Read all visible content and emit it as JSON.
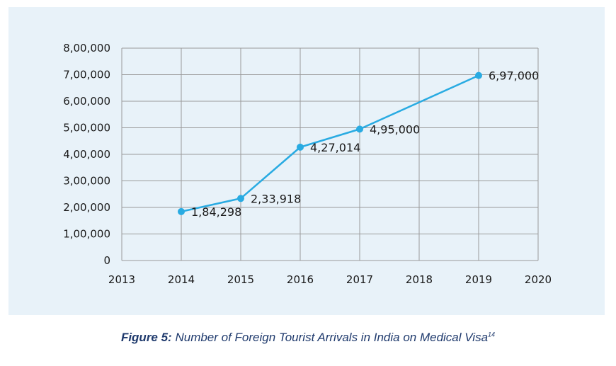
{
  "chart_data": {
    "type": "line",
    "title": "",
    "xlabel": "",
    "ylabel": "",
    "x_ticks": [
      "2013",
      "2014",
      "2015",
      "2016",
      "2017",
      "2018",
      "2019",
      "2020"
    ],
    "y_ticks": [
      "0",
      "1,00,000",
      "2,00,000",
      "3,00,000",
      "4,00,000",
      "5,00,000",
      "6,00,000",
      "7,00,000",
      "8,00,000"
    ],
    "xlim": [
      2013,
      2020
    ],
    "ylim": [
      0,
      800000
    ],
    "grid": true,
    "series": [
      {
        "name": "Foreign Tourist Arrivals on Medical Visa",
        "color": "#29abe2",
        "points": [
          {
            "x": 2014,
            "y": 184298,
            "label": "1,84,298"
          },
          {
            "x": 2015,
            "y": 233918,
            "label": "2,33,918"
          },
          {
            "x": 2016,
            "y": 427014,
            "label": "4,27,014"
          },
          {
            "x": 2017,
            "y": 495000,
            "label": "4,95,000"
          },
          {
            "x": 2019,
            "y": 697000,
            "label": "6,97,000"
          }
        ]
      }
    ]
  },
  "caption": {
    "label": "Figure 5:",
    "text": " Number of Foreign Tourist Arrivals in India on Medical Visa",
    "footnote": "14"
  },
  "colors": {
    "panel_background": "#e8f2f9",
    "grid": "#9a9a9a",
    "line": "#29abe2",
    "caption": "#1f3a6d"
  }
}
